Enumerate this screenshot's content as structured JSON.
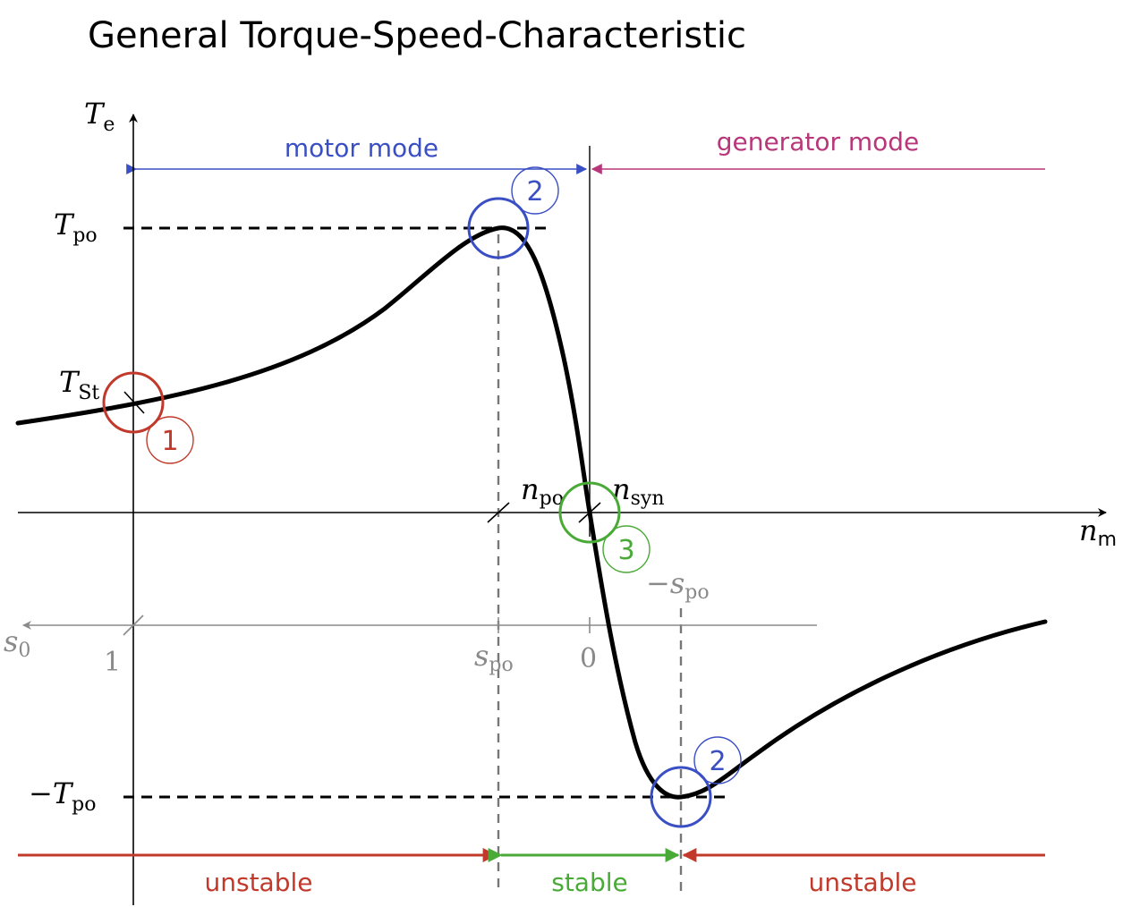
{
  "title": "General Torque-Speed-Characteristic",
  "colors": {
    "motor": "#3a4fc4",
    "generator": "#b8377a",
    "unstable": "#c0392b",
    "stable": "#4aaa37",
    "axis": "#000000",
    "slip_axis": "#8a8a8a",
    "curve": "#000000",
    "marker1": "#c0392b",
    "marker2": "#3a4fc4",
    "marker3": "#4aaa37"
  },
  "axes": {
    "y_symbol": "T",
    "y_sub": "e",
    "x_symbol": "n",
    "x_sub": "m"
  },
  "y_ticks": {
    "t_po": {
      "symbol": "T",
      "sub": "po",
      "prefix": ""
    },
    "t_st": {
      "symbol": "T",
      "sub": "St",
      "prefix": ""
    },
    "neg_t_po": {
      "symbol": "T",
      "sub": "po",
      "prefix": "−"
    }
  },
  "speed_labels": {
    "n_po": {
      "symbol": "n",
      "sub": "po"
    },
    "n_syn": {
      "symbol": "n",
      "sub": "syn"
    }
  },
  "slip_axis": {
    "s0": {
      "symbol": "s",
      "sub": "0"
    },
    "one": "1",
    "s_po": {
      "symbol": "s",
      "sub": "po"
    },
    "zero": "0",
    "neg_s_po": {
      "symbol": "s",
      "sub": "po",
      "prefix": "−"
    }
  },
  "modes": {
    "motor": "motor mode",
    "generator": "generator mode"
  },
  "stability": {
    "left": "unstable",
    "middle": "stable",
    "right": "unstable"
  },
  "markers": {
    "m1": "1",
    "m2_top": "2",
    "m2_bottom": "2",
    "m3": "3"
  }
}
